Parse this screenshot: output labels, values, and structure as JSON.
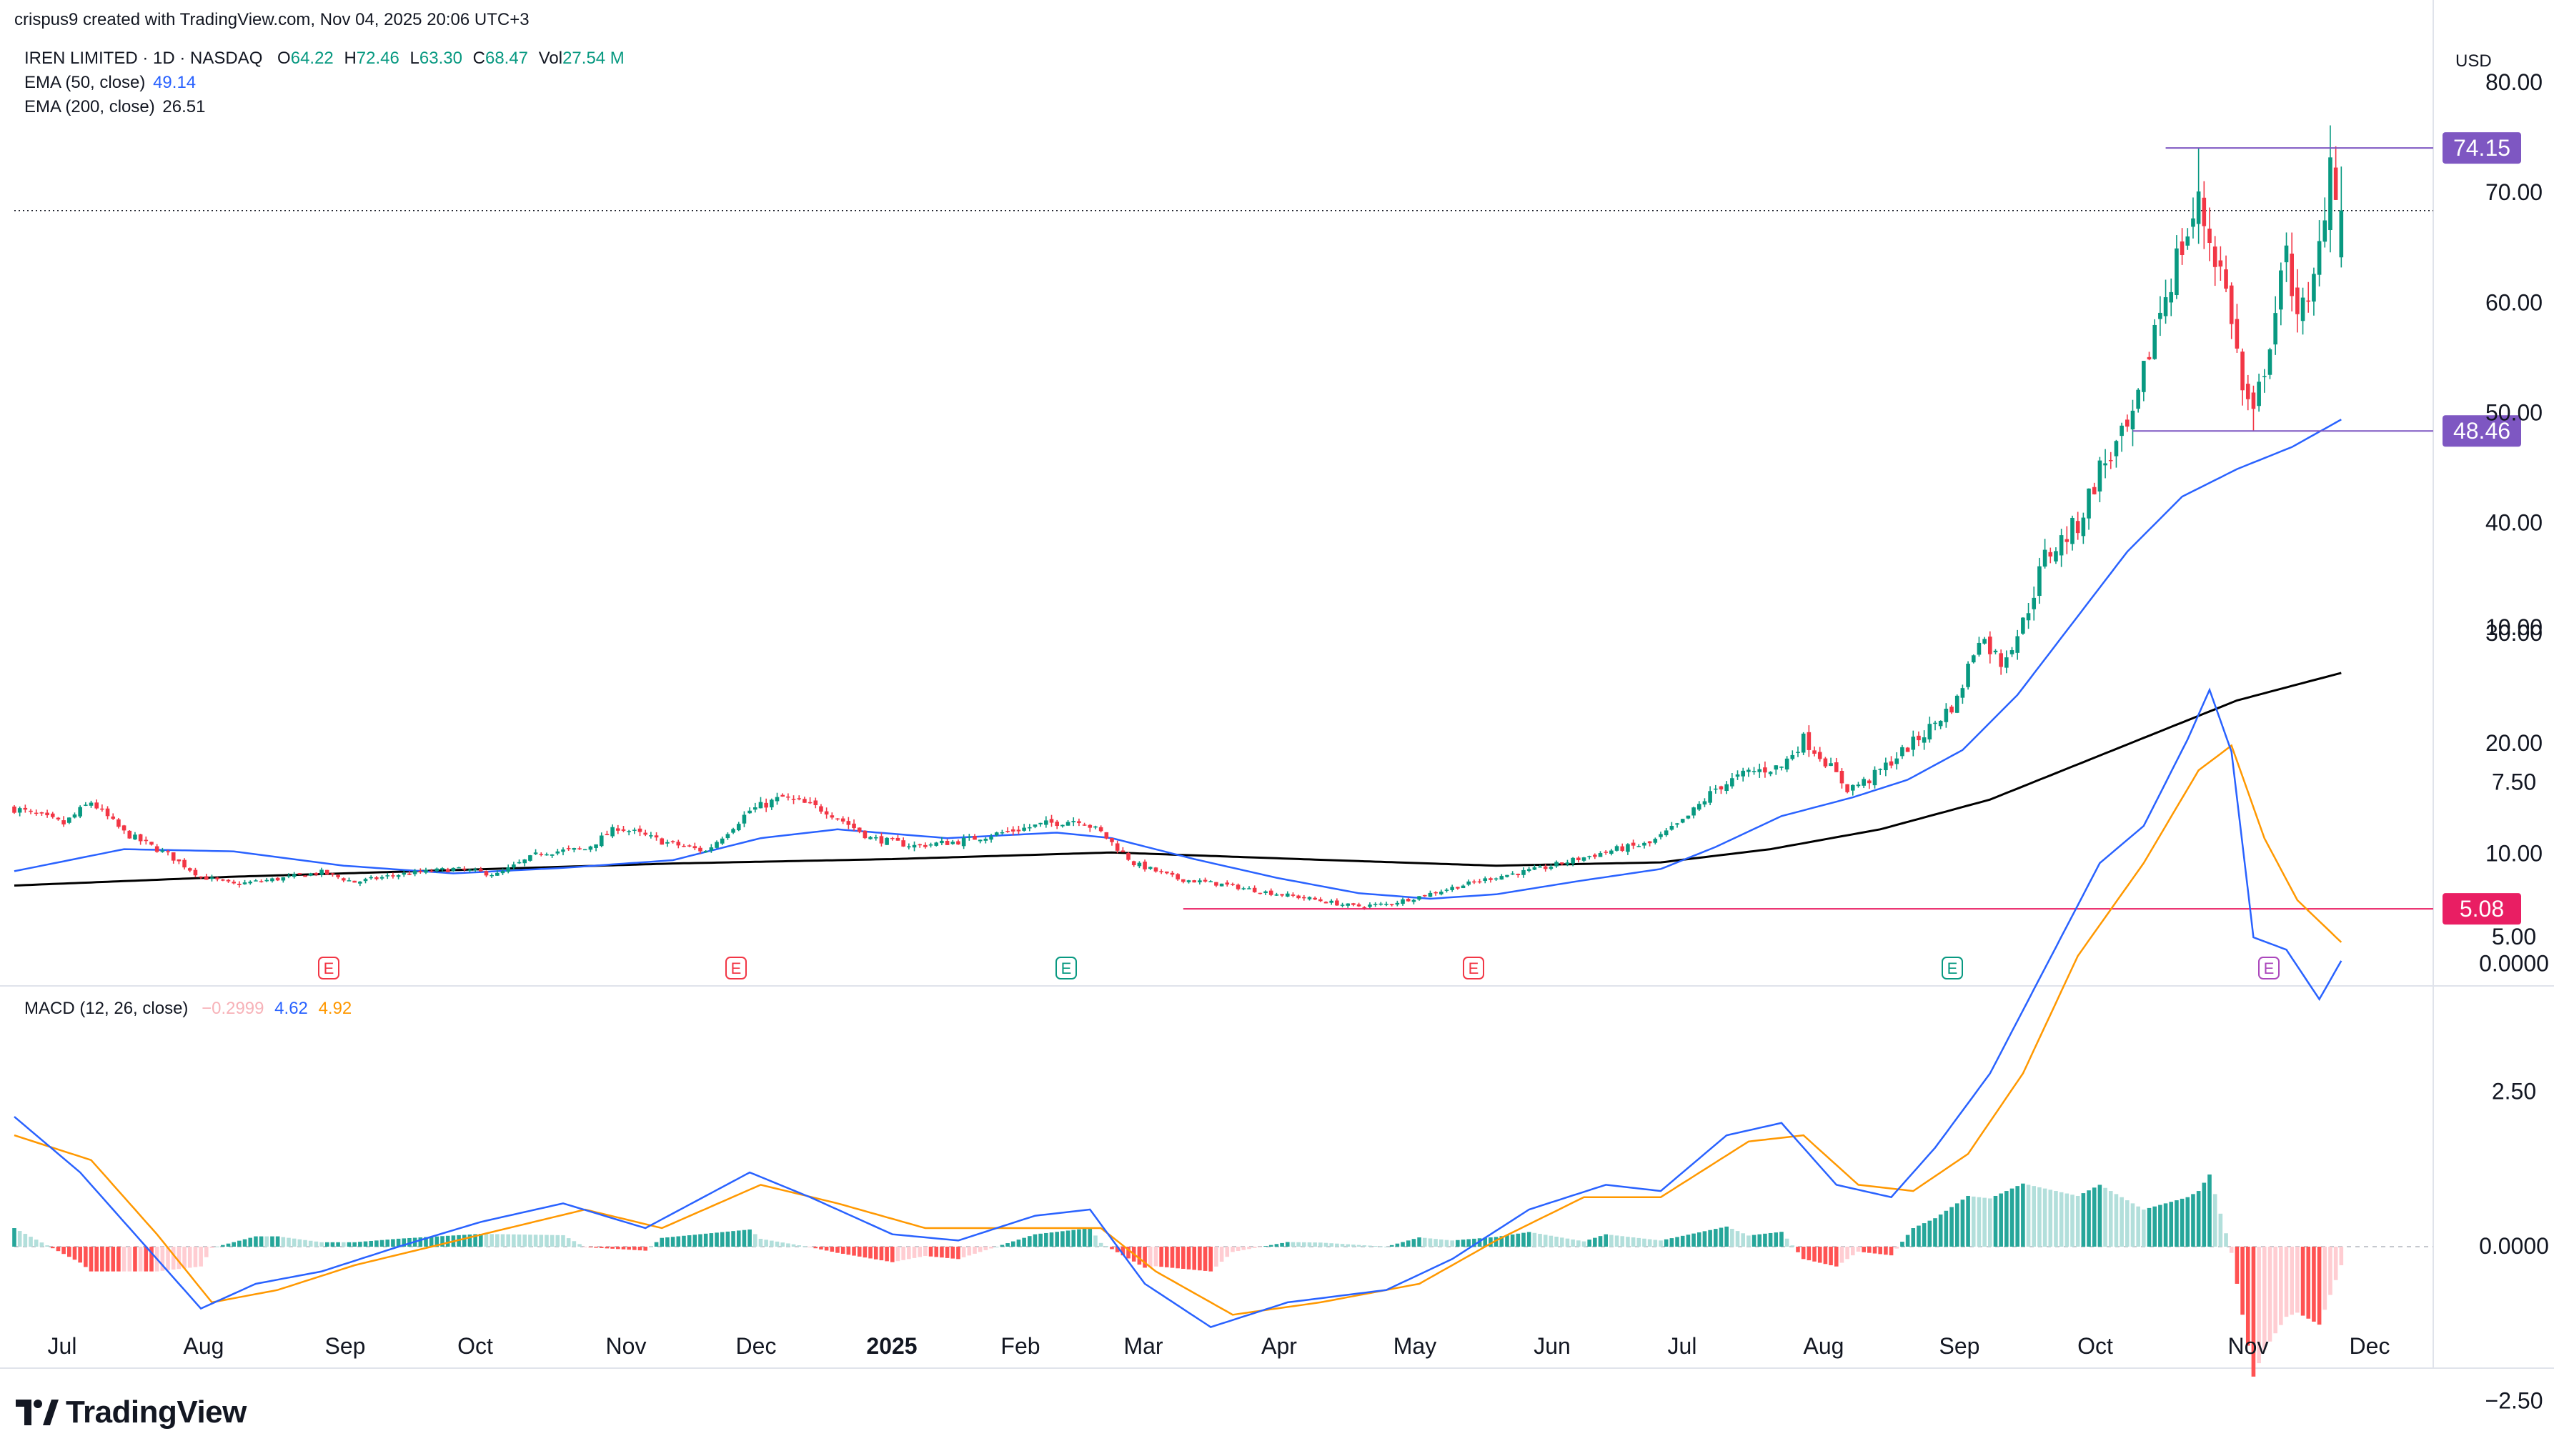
{
  "attribution": "crispus9 created with TradingView.com, Nov 04, 2025 20:06 UTC+3",
  "legend": {
    "symbol": "IREN LIMITED · 1D · NASDAQ",
    "o_label": "O",
    "o": "64.22",
    "h_label": "H",
    "h": "72.46",
    "l_label": "L",
    "l": "63.30",
    "c_label": "C",
    "c": "68.47",
    "vol_label": "Vol",
    "vol": "27.54 M",
    "ema50_label": "EMA (50, close)",
    "ema50": "49.14",
    "ema200_label": "EMA (200, close)",
    "ema200": "26.51",
    "macd_label": "MACD (12, 26, close)",
    "macd_hist": "−0.2999",
    "macd_line": "4.62",
    "macd_signal": "4.92"
  },
  "currency": "USD",
  "branding": "TradingView",
  "colors": {
    "up": "#089981",
    "down": "#f23645",
    "ema50": "#2962ff",
    "ema200": "#000000",
    "signal": "#ff9800",
    "level": "#7e57c2",
    "support": "#e91e63"
  },
  "chart_data": {
    "type": "candlestick",
    "title": "IREN LIMITED · 1D · NASDAQ",
    "price_axis": {
      "ticks": [
        "80.00",
        "70.00",
        "60.00",
        "50.00",
        "40.00",
        "30.00",
        "20.00",
        "10.00",
        "0.0000"
      ],
      "range": [
        0,
        82
      ]
    },
    "time_axis": {
      "labels": [
        "Jul",
        "Aug",
        "Sep",
        "Oct",
        "Nov",
        "Dec",
        "2025",
        "Feb",
        "Mar",
        "Apr",
        "May",
        "Jun",
        "Jul",
        "Aug",
        "Sep",
        "Oct",
        "Nov",
        "Dec"
      ]
    },
    "horizontal_levels": [
      {
        "value": 74.15,
        "label": "74.15"
      },
      {
        "value": 48.46,
        "label": "48.46"
      },
      {
        "value": 5.08,
        "label": "5.08"
      }
    ],
    "last_close": 68.47,
    "price_keypoints": [
      [
        0,
        14.2
      ],
      [
        9,
        12.8
      ],
      [
        14,
        14.8
      ],
      [
        20,
        12.0
      ],
      [
        28,
        10.0
      ],
      [
        34,
        8.0
      ],
      [
        40,
        7.3
      ],
      [
        48,
        7.8
      ],
      [
        56,
        8.4
      ],
      [
        62,
        7.5
      ],
      [
        70,
        8.2
      ],
      [
        80,
        8.7
      ],
      [
        88,
        8.2
      ],
      [
        96,
        10.2
      ],
      [
        104,
        10.5
      ],
      [
        110,
        12.5
      ],
      [
        118,
        11.2
      ],
      [
        126,
        10.3
      ],
      [
        134,
        14.0
      ],
      [
        140,
        15.2
      ],
      [
        148,
        14.0
      ],
      [
        156,
        11.5
      ],
      [
        164,
        10.8
      ],
      [
        172,
        11.2
      ],
      [
        180,
        12.0
      ],
      [
        188,
        12.8
      ],
      [
        194,
        13.2
      ],
      [
        198,
        12.0
      ],
      [
        204,
        9.2
      ],
      [
        212,
        7.8
      ],
      [
        220,
        7.3
      ],
      [
        228,
        6.6
      ],
      [
        236,
        6.0
      ],
      [
        244,
        5.3
      ],
      [
        250,
        5.5
      ],
      [
        256,
        6.2
      ],
      [
        262,
        7.0
      ],
      [
        270,
        8.0
      ],
      [
        278,
        8.7
      ],
      [
        284,
        9.5
      ],
      [
        292,
        10.5
      ],
      [
        298,
        11.0
      ],
      [
        304,
        13.0
      ],
      [
        310,
        16.0
      ],
      [
        316,
        17.5
      ],
      [
        322,
        18.0
      ],
      [
        326,
        20.5
      ],
      [
        330,
        18.5
      ],
      [
        334,
        16.0
      ],
      [
        338,
        16.8
      ],
      [
        342,
        18.5
      ],
      [
        348,
        21.0
      ],
      [
        354,
        24.0
      ],
      [
        358,
        30.0
      ],
      [
        362,
        27.5
      ],
      [
        366,
        31.0
      ],
      [
        370,
        37.0
      ],
      [
        376,
        40.0
      ],
      [
        380,
        45.0
      ],
      [
        386,
        49.0
      ],
      [
        390,
        58.0
      ],
      [
        394,
        64.0
      ],
      [
        398,
        69.0
      ],
      [
        402,
        63.0
      ],
      [
        404,
        59.0
      ],
      [
        406,
        52.0
      ],
      [
        408,
        49.5
      ],
      [
        411,
        57.0
      ],
      [
        414,
        64.0
      ],
      [
        416,
        60.0
      ],
      [
        418,
        59.0
      ],
      [
        420,
        65.0
      ],
      [
        422,
        73.5
      ],
      [
        424,
        68.47
      ]
    ],
    "ema50_keypoints": [
      [
        0,
        8.5
      ],
      [
        20,
        10.5
      ],
      [
        40,
        10.3
      ],
      [
        60,
        9.0
      ],
      [
        80,
        8.3
      ],
      [
        100,
        8.8
      ],
      [
        120,
        9.5
      ],
      [
        136,
        11.5
      ],
      [
        150,
        12.3
      ],
      [
        170,
        11.5
      ],
      [
        190,
        12.0
      ],
      [
        200,
        11.5
      ],
      [
        215,
        9.6
      ],
      [
        230,
        7.9
      ],
      [
        245,
        6.5
      ],
      [
        258,
        6.0
      ],
      [
        270,
        6.4
      ],
      [
        285,
        7.6
      ],
      [
        300,
        8.7
      ],
      [
        310,
        10.7
      ],
      [
        322,
        13.5
      ],
      [
        335,
        15.2
      ],
      [
        345,
        16.8
      ],
      [
        355,
        19.5
      ],
      [
        365,
        24.5
      ],
      [
        375,
        31.0
      ],
      [
        385,
        37.5
      ],
      [
        395,
        42.5
      ],
      [
        405,
        45.0
      ],
      [
        415,
        47.0
      ],
      [
        424,
        49.5
      ]
    ],
    "ema200_keypoints": [
      [
        0,
        7.2
      ],
      [
        40,
        8.0
      ],
      [
        80,
        8.6
      ],
      [
        120,
        9.2
      ],
      [
        160,
        9.6
      ],
      [
        200,
        10.2
      ],
      [
        240,
        9.5
      ],
      [
        270,
        9.0
      ],
      [
        300,
        9.3
      ],
      [
        320,
        10.5
      ],
      [
        340,
        12.3
      ],
      [
        360,
        15.0
      ],
      [
        375,
        18.0
      ],
      [
        390,
        21.0
      ],
      [
        405,
        24.0
      ],
      [
        424,
        26.5
      ]
    ],
    "earnings_markers": [
      {
        "day": 44,
        "type": "down"
      },
      {
        "day": 102,
        "type": "down"
      },
      {
        "day": 150,
        "type": "up"
      },
      {
        "day": 208,
        "type": "down"
      },
      {
        "day": 274,
        "type": "up"
      },
      {
        "day": 316,
        "type": "future"
      }
    ],
    "earnings_label": "E",
    "macd": {
      "axis_ticks": [
        "10.00",
        "7.50",
        "5.00",
        "2.50",
        "0.0000",
        "−2.50"
      ],
      "range": [
        -3.2,
        10.3
      ],
      "macd_keypoints": [
        [
          0,
          2.1
        ],
        [
          12,
          1.2
        ],
        [
          24,
          0.0
        ],
        [
          34,
          -1.0
        ],
        [
          44,
          -0.6
        ],
        [
          56,
          -0.4
        ],
        [
          70,
          0.0
        ],
        [
          85,
          0.4
        ],
        [
          100,
          0.7
        ],
        [
          115,
          0.3
        ],
        [
          134,
          1.2
        ],
        [
          145,
          0.8
        ],
        [
          160,
          0.2
        ],
        [
          172,
          0.1
        ],
        [
          186,
          0.5
        ],
        [
          196,
          0.6
        ],
        [
          206,
          -0.6
        ],
        [
          218,
          -1.3
        ],
        [
          232,
          -0.9
        ],
        [
          250,
          -0.7
        ],
        [
          262,
          -0.2
        ],
        [
          276,
          0.6
        ],
        [
          290,
          1.0
        ],
        [
          300,
          0.9
        ],
        [
          312,
          1.8
        ],
        [
          322,
          2.0
        ],
        [
          332,
          1.0
        ],
        [
          342,
          0.8
        ],
        [
          350,
          1.6
        ],
        [
          360,
          2.8
        ],
        [
          370,
          4.5
        ],
        [
          380,
          6.2
        ],
        [
          388,
          6.8
        ],
        [
          396,
          8.2
        ],
        [
          400,
          9.0
        ],
        [
          404,
          8.0
        ],
        [
          408,
          5.0
        ],
        [
          414,
          4.8
        ],
        [
          420,
          4.0
        ],
        [
          424,
          4.62
        ]
      ],
      "signal_keypoints": [
        [
          0,
          1.8
        ],
        [
          14,
          1.4
        ],
        [
          26,
          0.2
        ],
        [
          36,
          -0.9
        ],
        [
          48,
          -0.7
        ],
        [
          62,
          -0.3
        ],
        [
          76,
          0.0
        ],
        [
          90,
          0.3
        ],
        [
          104,
          0.6
        ],
        [
          118,
          0.3
        ],
        [
          136,
          1.0
        ],
        [
          150,
          0.7
        ],
        [
          166,
          0.3
        ],
        [
          182,
          0.3
        ],
        [
          198,
          0.3
        ],
        [
          208,
          -0.4
        ],
        [
          222,
          -1.1
        ],
        [
          238,
          -0.9
        ],
        [
          256,
          -0.6
        ],
        [
          270,
          0.1
        ],
        [
          286,
          0.8
        ],
        [
          300,
          0.8
        ],
        [
          316,
          1.7
        ],
        [
          326,
          1.8
        ],
        [
          336,
          1.0
        ],
        [
          346,
          0.9
        ],
        [
          356,
          1.5
        ],
        [
          366,
          2.8
        ],
        [
          376,
          4.7
        ],
        [
          388,
          6.2
        ],
        [
          398,
          7.7
        ],
        [
          404,
          8.1
        ],
        [
          410,
          6.6
        ],
        [
          416,
          5.6
        ],
        [
          424,
          4.92
        ]
      ],
      "last_hist": -0.2999
    }
  }
}
